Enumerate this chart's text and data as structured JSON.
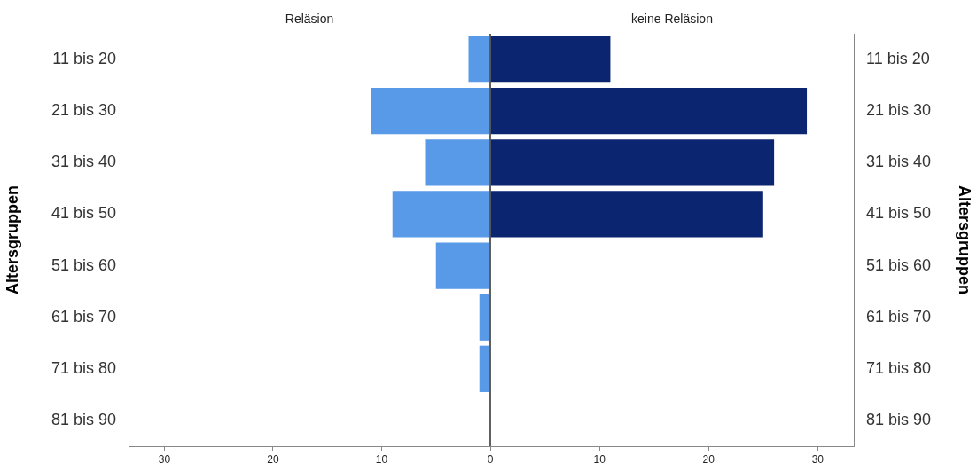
{
  "chart_data": [
    {
      "type": "bar",
      "orientation": "horizontal",
      "title": "Reläsion",
      "ylabel": "Altersgruppen",
      "categories": [
        "11 bis 20",
        "21 bis 30",
        "31 bis 40",
        "41 bis 50",
        "51 bis 60",
        "61 bis 70",
        "71 bis 80",
        "81 bis 90"
      ],
      "values": [
        2,
        11,
        6,
        9,
        5,
        1,
        1,
        0
      ],
      "color": "#5899e8",
      "xlim": [
        33.3,
        0
      ],
      "xticks": [
        30,
        20,
        10,
        0
      ]
    },
    {
      "type": "bar",
      "orientation": "horizontal",
      "title": "keine Reläsion",
      "ylabel": "Altersgruppen",
      "categories": [
        "11 bis 20",
        "21 bis 30",
        "31 bis 40",
        "41 bis 50",
        "51 bis 60",
        "61 bis 70",
        "71 bis 80",
        "81 bis 90"
      ],
      "values": [
        11,
        29,
        26,
        25,
        0,
        0,
        0,
        0
      ],
      "color": "#0c2570",
      "xlim": [
        0,
        33.3
      ],
      "xticks": [
        {
          "value": 0,
          "label": null
        },
        10,
        20,
        30
      ]
    }
  ]
}
